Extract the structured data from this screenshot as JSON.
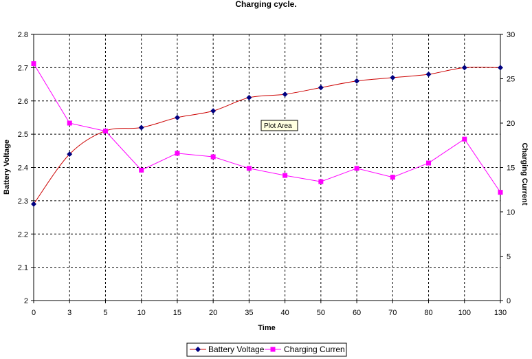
{
  "chart_data": {
    "type": "line",
    "title": "Charging cycle.",
    "xlabel": "Time",
    "ylabel_left": "Battery Voltage",
    "ylabel_right": "Charging Current",
    "categories": [
      "0",
      "3",
      "5",
      "10",
      "15",
      "20",
      "35",
      "40",
      "50",
      "60",
      "70",
      "80",
      "100",
      "130"
    ],
    "y_left_ticks": [
      "2",
      "2.1",
      "2.2",
      "2.3",
      "2.4",
      "2.5",
      "2.6",
      "2.7",
      "2.8"
    ],
    "y_right_ticks": [
      "0",
      "5",
      "10",
      "15",
      "20",
      "25",
      "30"
    ],
    "ylim_left": [
      2.0,
      2.8
    ],
    "ylim_right": [
      0,
      30
    ],
    "grid": "dashed",
    "legend_placement": "bottom",
    "series": [
      {
        "name": "Battery Voltage",
        "axis": "left",
        "marker": "diamond",
        "marker_color": "#000080",
        "line_color": "#cc0000",
        "smooth": true,
        "values": [
          2.29,
          2.44,
          2.51,
          2.52,
          2.55,
          2.57,
          2.61,
          2.62,
          2.64,
          2.66,
          2.67,
          2.68,
          2.7,
          2.7
        ]
      },
      {
        "name": "Charging Curren",
        "axis": "right",
        "marker": "square",
        "marker_color": "#ff00ff",
        "line_color": "#ff00ff",
        "smooth": false,
        "values": [
          26.7,
          20.0,
          19.1,
          14.7,
          16.6,
          16.2,
          14.9,
          14.1,
          13.4,
          14.9,
          13.9,
          15.5,
          18.2,
          12.2
        ]
      }
    ],
    "tooltip": "Plot Area"
  }
}
